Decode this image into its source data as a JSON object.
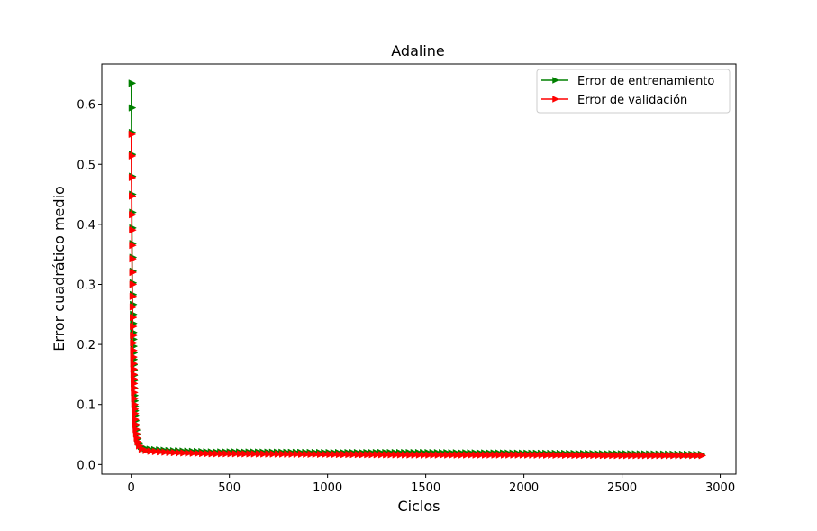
{
  "chart_data": {
    "type": "line",
    "title": "Adaline",
    "xlabel": "Ciclos",
    "ylabel": "Error cuadrático medio",
    "xlim": [
      -150,
      3080
    ],
    "ylim": [
      -0.016,
      0.667
    ],
    "xticks": [
      0,
      500,
      1000,
      1500,
      2000,
      2500,
      3000
    ],
    "yticks": [
      0.0,
      0.1,
      0.2,
      0.3,
      0.4,
      0.5,
      0.6
    ],
    "xtick_labels": [
      "0",
      "500",
      "1000",
      "1500",
      "2000",
      "2500",
      "3000"
    ],
    "ytick_labels": [
      "0.0",
      "0.1",
      "0.2",
      "0.3",
      "0.4",
      "0.5",
      "0.6"
    ],
    "grid": false,
    "legend_position": "top-right",
    "marker": "triangle-right",
    "series": [
      {
        "name": "Error de entrenamiento",
        "color": "#008000",
        "x_range": [
          0,
          2920
        ],
        "x": [
          0,
          1,
          2,
          3,
          4,
          5,
          6,
          7,
          8,
          9,
          10,
          12,
          14,
          16,
          18,
          20,
          25,
          30,
          40,
          50,
          75,
          100,
          150,
          200,
          300,
          400,
          500,
          1000,
          1500,
          2000,
          2500,
          2920
        ],
        "y": [
          0.635,
          0.553,
          0.48,
          0.42,
          0.368,
          0.322,
          0.283,
          0.25,
          0.22,
          0.197,
          0.175,
          0.14,
          0.115,
          0.097,
          0.082,
          0.07,
          0.052,
          0.042,
          0.033,
          0.029,
          0.026,
          0.025,
          0.024,
          0.023,
          0.022,
          0.021,
          0.021,
          0.02,
          0.02,
          0.019,
          0.018,
          0.017
        ]
      },
      {
        "name": "Error de validación",
        "color": "#ff0000",
        "x_range": [
          0,
          2920
        ],
        "x": [
          0,
          1,
          2,
          3,
          4,
          5,
          6,
          7,
          8,
          9,
          10,
          12,
          14,
          16,
          18,
          20,
          25,
          30,
          40,
          50,
          75,
          100,
          150,
          200,
          300,
          400,
          500,
          1000,
          1500,
          2000,
          2500,
          2920
        ],
        "y": [
          0.55,
          0.478,
          0.416,
          0.365,
          0.32,
          0.28,
          0.245,
          0.215,
          0.19,
          0.168,
          0.15,
          0.12,
          0.1,
          0.085,
          0.072,
          0.062,
          0.047,
          0.038,
          0.03,
          0.026,
          0.023,
          0.022,
          0.021,
          0.02,
          0.019,
          0.018,
          0.018,
          0.017,
          0.016,
          0.016,
          0.015,
          0.015
        ]
      }
    ]
  }
}
